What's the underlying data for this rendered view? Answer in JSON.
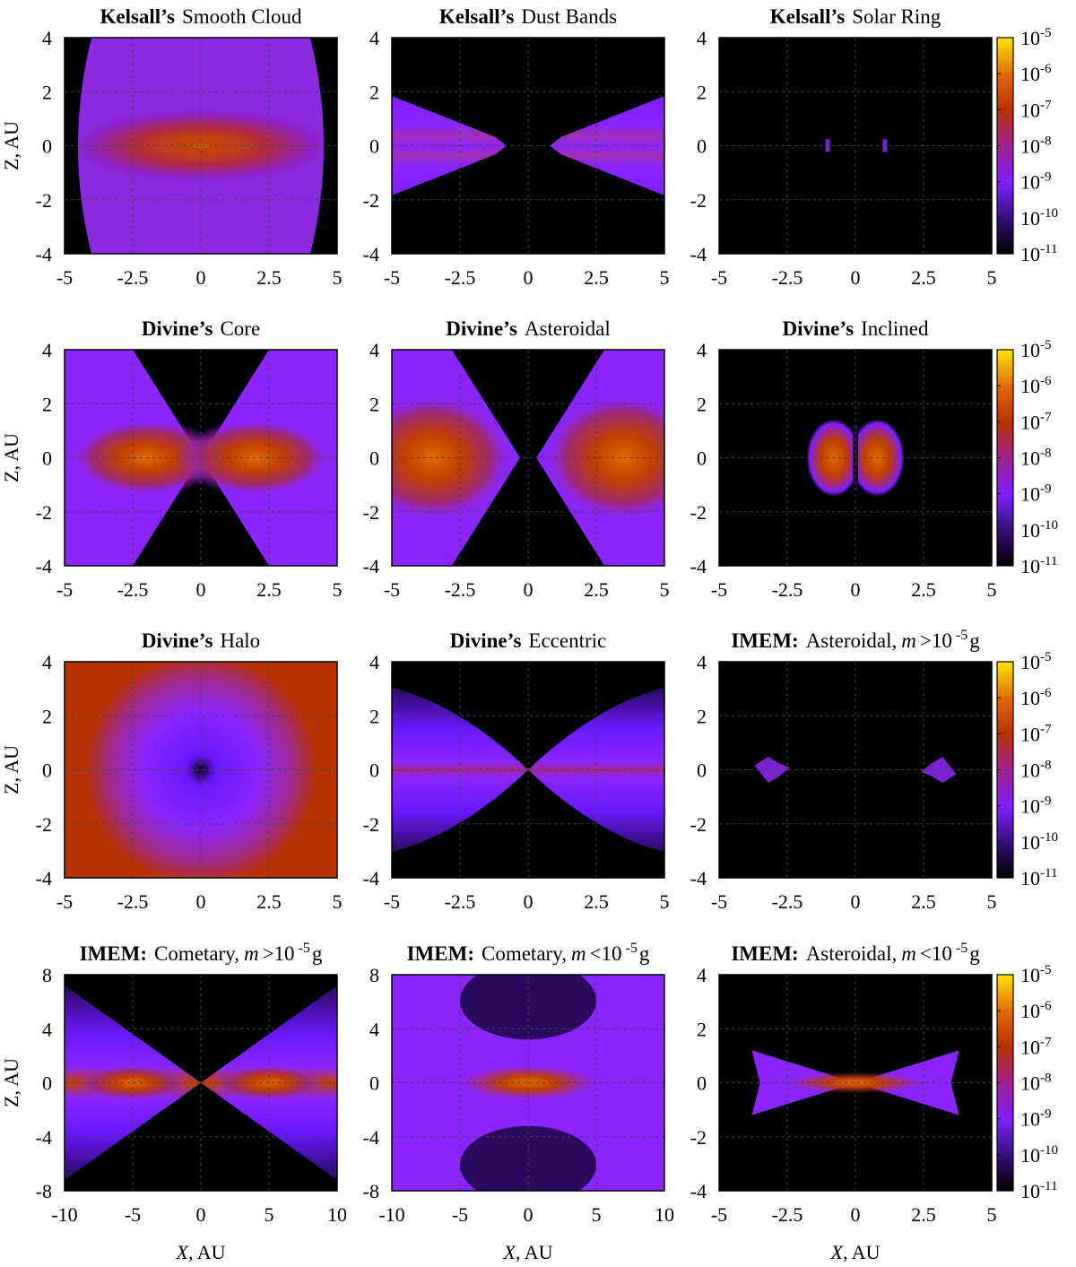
{
  "figure": {
    "colorbar": {
      "ticks": [
        "-5",
        "-6",
        "-7",
        "-8",
        "-9",
        "-10",
        "-11"
      ],
      "colors": {
        "black": "#000000",
        "violet_dark": "#2a0a5e",
        "violet": "#7f1fff",
        "blue_violet": "#9a3cff",
        "purple": "#a22090",
        "red": "#b83200",
        "orange": "#e06a00",
        "yellow": "#ffe500"
      }
    },
    "axis_labels": {
      "z": "Z, AU",
      "x_var": "X",
      "x_unit": ", AU"
    }
  },
  "chart_data": [
    {
      "type": "heatmap",
      "title": {
        "bold": "Kelsall’s",
        "rest": "Smooth Cloud"
      },
      "x_ticks": [
        "-5",
        "-2.5",
        "0",
        "2.5",
        "5"
      ],
      "y_ticks": [
        "4",
        "2",
        "0",
        "-2",
        "-4"
      ],
      "xlim": [
        -5,
        5
      ],
      "ylim": [
        -4,
        4
      ],
      "grid": true,
      "colorbar": false,
      "xlabel": false,
      "ylabel": true
    },
    {
      "type": "heatmap",
      "title": {
        "bold": "Kelsall’s",
        "rest": "Dust Bands"
      },
      "x_ticks": [
        "-5",
        "-2.5",
        "0",
        "2.5",
        "5"
      ],
      "y_ticks": [
        "4",
        "2",
        "0",
        "-2",
        "-4"
      ],
      "xlim": [
        -5,
        5
      ],
      "ylim": [
        -4,
        4
      ],
      "grid": true,
      "colorbar": false,
      "xlabel": false,
      "ylabel": false
    },
    {
      "type": "heatmap",
      "title": {
        "bold": "Kelsall’s",
        "rest": "Solar Ring"
      },
      "x_ticks": [
        "-5",
        "-2.5",
        "0",
        "2.5",
        "5"
      ],
      "y_ticks": [
        "4",
        "2",
        "0",
        "-2",
        "-4"
      ],
      "xlim": [
        -5,
        5
      ],
      "ylim": [
        -4,
        4
      ],
      "grid": true,
      "colorbar": true,
      "xlabel": false,
      "ylabel": false
    },
    {
      "type": "heatmap",
      "title": {
        "bold": "Divine’s",
        "rest": "Core"
      },
      "x_ticks": [
        "-5",
        "-2.5",
        "0",
        "2.5",
        "5"
      ],
      "y_ticks": [
        "4",
        "2",
        "0",
        "-2",
        "-4"
      ],
      "xlim": [
        -5,
        5
      ],
      "ylim": [
        -4,
        4
      ],
      "grid": true,
      "colorbar": false,
      "xlabel": false,
      "ylabel": true
    },
    {
      "type": "heatmap",
      "title": {
        "bold": "Divine’s",
        "rest": "Asteroidal"
      },
      "x_ticks": [
        "-5",
        "-2.5",
        "0",
        "2.5",
        "5"
      ],
      "y_ticks": [
        "4",
        "2",
        "0",
        "-2",
        "-4"
      ],
      "xlim": [
        -5,
        5
      ],
      "ylim": [
        -4,
        4
      ],
      "grid": true,
      "colorbar": false,
      "xlabel": false,
      "ylabel": false
    },
    {
      "type": "heatmap",
      "title": {
        "bold": "Divine’s",
        "rest": "Inclined"
      },
      "x_ticks": [
        "-5",
        "-2.5",
        "0",
        "2.5",
        "5"
      ],
      "y_ticks": [
        "4",
        "2",
        "0",
        "-2",
        "-4"
      ],
      "xlim": [
        -5,
        5
      ],
      "ylim": [
        -4,
        4
      ],
      "grid": true,
      "colorbar": true,
      "xlabel": false,
      "ylabel": false
    },
    {
      "type": "heatmap",
      "title": {
        "bold": "Divine’s",
        "rest": "Halo"
      },
      "x_ticks": [
        "-5",
        "-2.5",
        "0",
        "2.5",
        "5"
      ],
      "y_ticks": [
        "4",
        "2",
        "0",
        "-2",
        "-4"
      ],
      "xlim": [
        -5,
        5
      ],
      "ylim": [
        -4,
        4
      ],
      "grid": true,
      "colorbar": false,
      "xlabel": false,
      "ylabel": true
    },
    {
      "type": "heatmap",
      "title": {
        "bold": "Divine’s",
        "rest": "Eccentric"
      },
      "x_ticks": [
        "-5",
        "-2.5",
        "0",
        "2.5",
        "5"
      ],
      "y_ticks": [
        "4",
        "2",
        "0",
        "-2",
        "-4"
      ],
      "xlim": [
        -5,
        5
      ],
      "ylim": [
        -4,
        4
      ],
      "grid": true,
      "colorbar": false,
      "xlabel": false,
      "ylabel": false
    },
    {
      "type": "heatmap",
      "title": {
        "bold": "IMEM:",
        "rest": "Asteroidal,",
        "math": "m",
        "rel": ">10",
        "sup": "-5",
        "unit": "g"
      },
      "x_ticks": [
        "-5",
        "-2.5",
        "0",
        "2.5",
        "5"
      ],
      "y_ticks": [
        "4",
        "2",
        "0",
        "-2",
        "-4"
      ],
      "xlim": [
        -5,
        5
      ],
      "ylim": [
        -4,
        4
      ],
      "grid": true,
      "colorbar": true,
      "xlabel": false,
      "ylabel": false
    },
    {
      "type": "heatmap",
      "title": {
        "bold": "IMEM:",
        "rest": "Cometary,",
        "math": "m",
        "rel": ">10",
        "sup": "-5",
        "unit": "g"
      },
      "x_ticks": [
        "-10",
        "-5",
        "0",
        "5",
        "10"
      ],
      "y_ticks": [
        "8",
        "4",
        "0",
        "-4",
        "-8"
      ],
      "xlim": [
        -10,
        10
      ],
      "ylim": [
        -8,
        8
      ],
      "grid": true,
      "colorbar": false,
      "xlabel": true,
      "ylabel": true
    },
    {
      "type": "heatmap",
      "title": {
        "bold": "IMEM:",
        "rest": "Cometary,",
        "math": "m",
        "rel": "<10",
        "sup": "-5",
        "unit": "g"
      },
      "x_ticks": [
        "-10",
        "-5",
        "0",
        "5",
        "10"
      ],
      "y_ticks": [
        "8",
        "4",
        "0",
        "-4",
        "-8"
      ],
      "xlim": [
        -10,
        10
      ],
      "ylim": [
        -8,
        8
      ],
      "grid": true,
      "colorbar": false,
      "xlabel": true,
      "ylabel": false
    },
    {
      "type": "heatmap",
      "title": {
        "bold": "IMEM:",
        "rest": "Asteroidal,",
        "math": "m",
        "rel": "<10",
        "sup": "-5",
        "unit": "g"
      },
      "x_ticks": [
        "-5",
        "-2.5",
        "0",
        "2.5",
        "5"
      ],
      "y_ticks": [
        "4",
        "2",
        "0",
        "-2",
        "-4"
      ],
      "xlim": [
        -5,
        5
      ],
      "ylim": [
        -4,
        4
      ],
      "grid": true,
      "colorbar": true,
      "xlabel": true,
      "ylabel": false
    }
  ]
}
